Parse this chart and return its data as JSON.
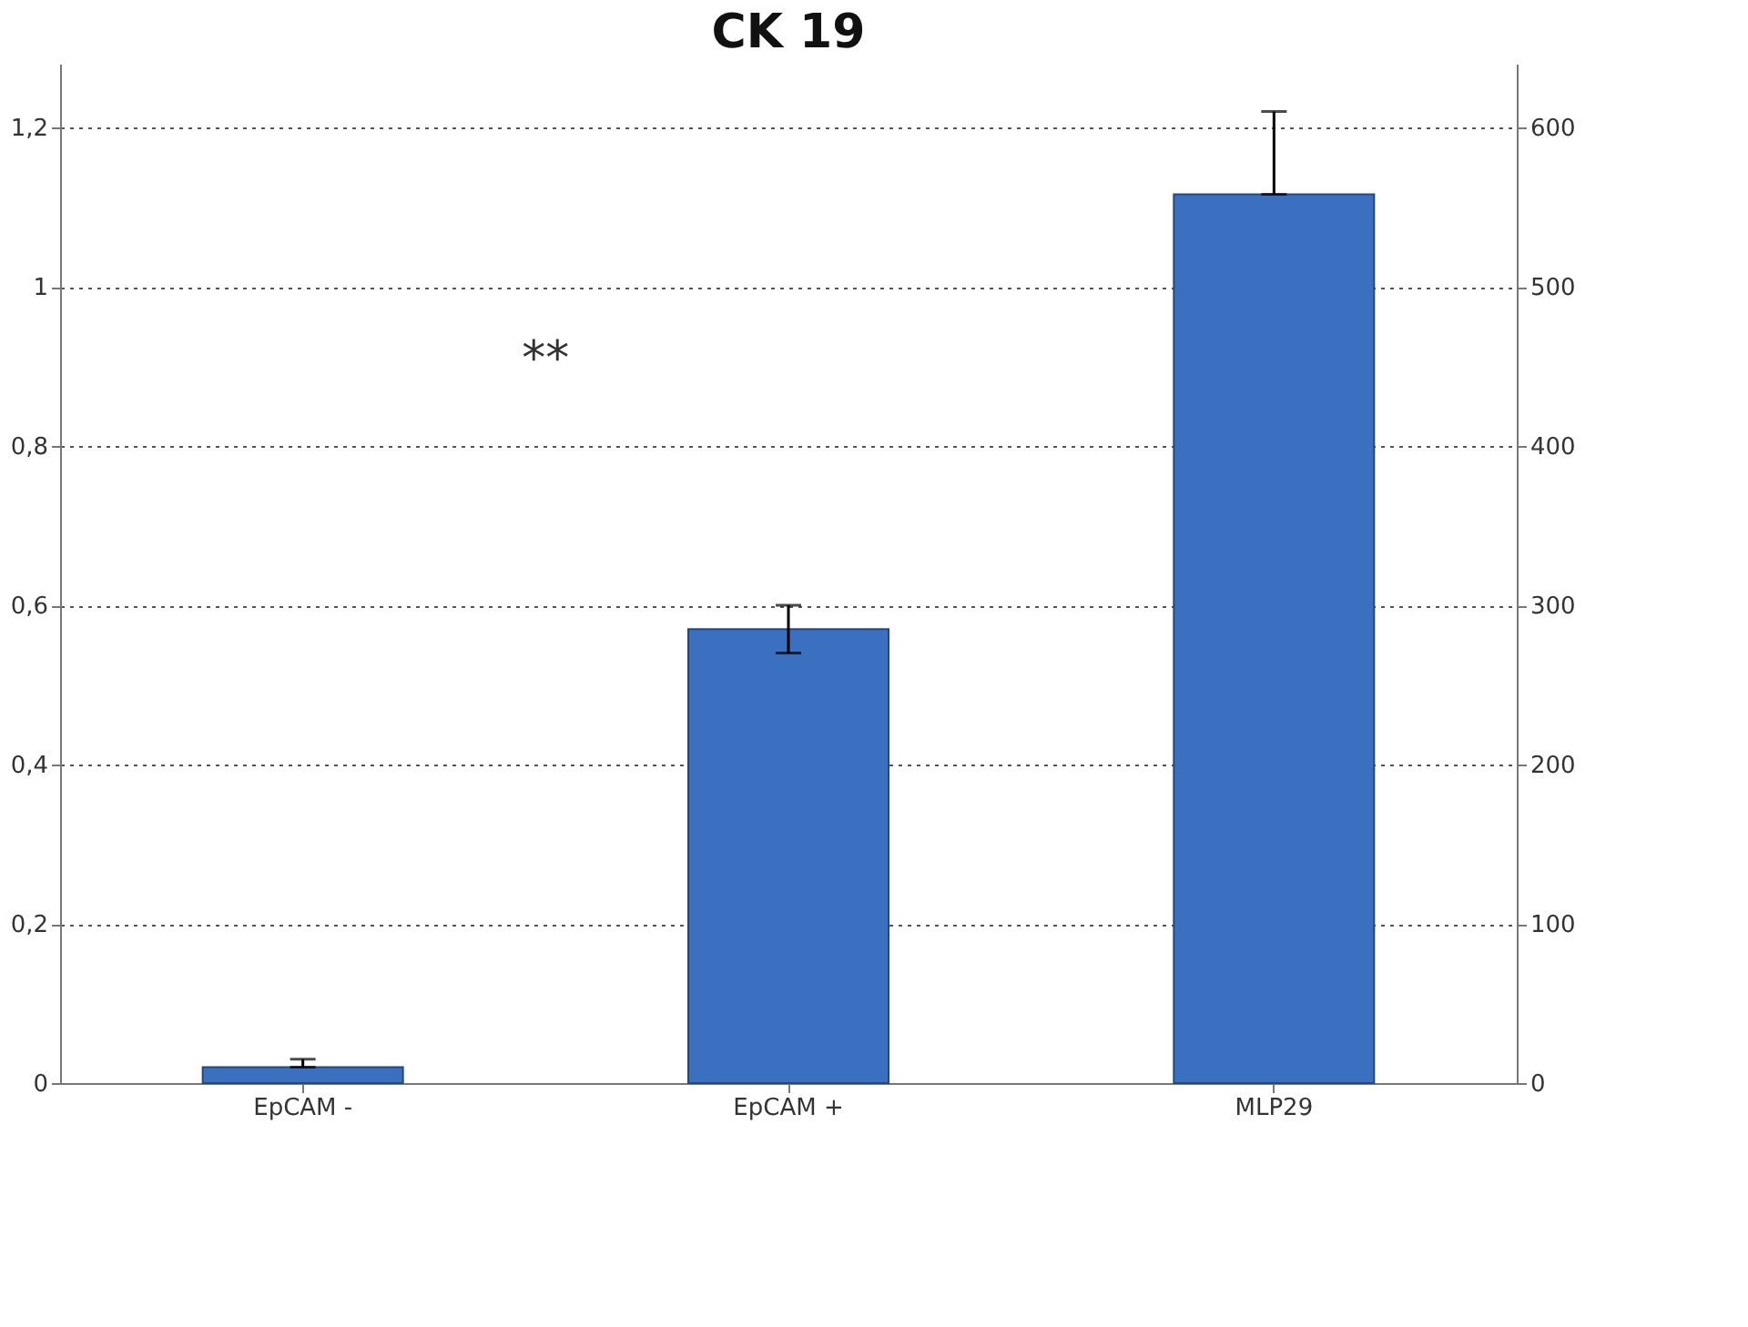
{
  "chart_data": {
    "type": "bar",
    "title": "CK 19",
    "categories": [
      "EpCAM -",
      "EpCAM +",
      "MLP29"
    ],
    "series": [
      {
        "color": "#3b70c0",
        "values": [
          0.02,
          0.57,
          null
        ],
        "errors": [
          [
            0.02,
            0.03
          ],
          [
            0.54,
            0.6
          ],
          null
        ]
      },
      {
        "color": "#3b70c0",
        "axis": "y2",
        "values": [
          null,
          null,
          558
        ],
        "errors": [
          null,
          null,
          [
            558,
            610
          ]
        ]
      }
    ],
    "ylim": [
      0,
      1.28
    ],
    "yticks": [
      0,
      {
        "value": 0.2,
        "label": "0,2"
      },
      {
        "value": 0.4,
        "label": "0,4"
      },
      {
        "value": 0.6,
        "label": "0,6"
      },
      {
        "value": 0.8,
        "label": "0,8"
      },
      1,
      {
        "value": 1.2,
        "label": "1,2"
      }
    ],
    "y2lim": [
      0,
      640
    ],
    "y2ticks": [
      0,
      100,
      200,
      300,
      400,
      500,
      600
    ],
    "grid": "y",
    "annotations": [
      "**"
    ]
  }
}
